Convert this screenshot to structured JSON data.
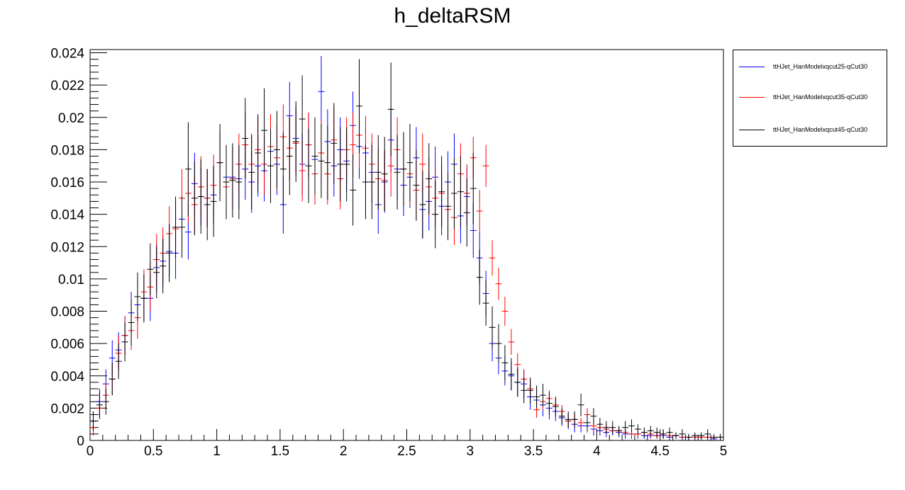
{
  "chart_data": {
    "type": "scatter",
    "title": "h_deltaRSM",
    "xlabel": "",
    "ylabel": "",
    "xlim": [
      0,
      5
    ],
    "ylim": [
      0,
      0.0242
    ],
    "x_ticks": [
      "0",
      "0.5",
      "1",
      "1.5",
      "2",
      "2.5",
      "3",
      "3.5",
      "4",
      "4.5",
      "5"
    ],
    "y_ticks": [
      "0",
      "0.002",
      "0.004",
      "0.006",
      "0.008",
      "0.01",
      "0.012",
      "0.014",
      "0.016",
      "0.018",
      "0.02",
      "0.022",
      "0.024"
    ],
    "bin_width": 0.05,
    "legend_position": "top-right-outside",
    "grid": false,
    "series": [
      {
        "name": "ttHJet_HanModelxqcut25-qCut30",
        "color": "#0000ff",
        "values": [
          0.0012,
          0.0024,
          0.0035,
          0.0051,
          0.0056,
          0.0065,
          0.0079,
          0.0084,
          0.0088,
          0.0088,
          0.0107,
          0.0111,
          0.0117,
          0.0116,
          0.0137,
          0.0129,
          0.0159,
          0.0151,
          0.015,
          0.0152,
          0.0172,
          0.0163,
          0.0163,
          0.0162,
          0.0168,
          0.016,
          0.017,
          0.0167,
          0.0179,
          0.0171,
          0.0146,
          0.0201,
          0.0187,
          0.0171,
          0.0183,
          0.0174,
          0.0216,
          0.0185,
          0.017,
          0.018,
          0.0173,
          0.0195,
          0.0182,
          0.0178,
          0.0166,
          0.0146,
          0.016,
          0.0186,
          0.0168,
          0.0158,
          0.0163,
          0.0175,
          0.0143,
          0.0148,
          0.0163,
          0.0145,
          0.016,
          0.0171,
          0.0139,
          0.0151,
          0.013,
          0.0113,
          0.0091,
          0.006,
          0.0051,
          0.0043,
          0.004,
          0.0036,
          0.0035,
          0.0027,
          0.0025,
          0.0022,
          0.002,
          0.0018,
          0.0014,
          0.0012,
          0.001,
          0.0009,
          0.0009,
          0.0007,
          0.0006,
          0.0005,
          0.0006,
          0.0005,
          0.0004,
          0.0004,
          0.0004,
          0.0003,
          0.0003,
          0.0003,
          0.0003,
          0.0002,
          0.0003,
          0.0002,
          0.0002,
          0.0002,
          0.0002,
          0.0002,
          0.0001,
          0.0002
        ],
        "errors": [
          0.0006,
          0.0008,
          0.0009,
          0.0011,
          0.0011,
          0.0012,
          0.0013,
          0.0014,
          0.0014,
          0.0014,
          0.0015,
          0.0016,
          0.0016,
          0.0016,
          0.0017,
          0.0017,
          0.0019,
          0.0018,
          0.0018,
          0.0018,
          0.0019,
          0.0019,
          0.0019,
          0.0019,
          0.0019,
          0.0019,
          0.0019,
          0.0019,
          0.002,
          0.0019,
          0.0018,
          0.0021,
          0.002,
          0.0019,
          0.002,
          0.0019,
          0.0022,
          0.002,
          0.0019,
          0.002,
          0.0019,
          0.0021,
          0.002,
          0.002,
          0.0019,
          0.0018,
          0.0019,
          0.002,
          0.0019,
          0.0019,
          0.0019,
          0.0019,
          0.0018,
          0.0018,
          0.0019,
          0.0018,
          0.0019,
          0.0019,
          0.0017,
          0.0018,
          0.0017,
          0.0016,
          0.0014,
          0.0011,
          0.001,
          0.0009,
          0.0009,
          0.0009,
          0.0009,
          0.0008,
          0.0007,
          0.0007,
          0.0007,
          0.0006,
          0.0005,
          0.0005,
          0.0005,
          0.0004,
          0.0004,
          0.0004,
          0.0003,
          0.0003,
          0.0003,
          0.0003,
          0.0003,
          0.0003,
          0.0003,
          0.0002,
          0.0002,
          0.0002,
          0.0002,
          0.0002,
          0.0002,
          0.0002,
          0.0002,
          0.0002,
          0.0002,
          0.0002,
          0.0001,
          0.0002
        ]
      },
      {
        "name": "ttHJet_HanModelxqcut35-qCut30",
        "color": "#ff0000",
        "values": [
          0.0008,
          0.002,
          0.0028,
          0.0038,
          0.0054,
          0.0065,
          0.0068,
          0.0076,
          0.0092,
          0.0095,
          0.0112,
          0.0116,
          0.0128,
          0.0131,
          0.015,
          0.0153,
          0.0146,
          0.0157,
          0.015,
          0.0158,
          0.0172,
          0.0157,
          0.0162,
          0.0171,
          0.0183,
          0.0171,
          0.018,
          0.0171,
          0.0182,
          0.0175,
          0.0188,
          0.0181,
          0.0184,
          0.0167,
          0.0183,
          0.0165,
          0.0178,
          0.0165,
          0.0186,
          0.0162,
          0.018,
          0.0183,
          0.0189,
          0.0181,
          0.0171,
          0.0162,
          0.0161,
          0.017,
          0.018,
          0.0168,
          0.0165,
          0.0155,
          0.0171,
          0.0157,
          0.015,
          0.0153,
          0.0143,
          0.0138,
          0.0165,
          0.0153,
          0.0175,
          0.0142,
          0.017,
          0.0113,
          0.0097,
          0.008,
          0.0061,
          0.0047,
          0.0038,
          0.0032,
          0.0019,
          0.0024,
          0.0026,
          0.0022,
          0.0018,
          0.0012,
          0.0013,
          0.0011,
          0.0016,
          0.0009,
          0.0008,
          0.0007,
          0.0006,
          0.0006,
          0.0005,
          0.0004,
          0.0004,
          0.0005,
          0.0004,
          0.0003,
          0.0004,
          0.0003,
          0.0003,
          0.0002,
          0.0002,
          0.0002,
          0.0002,
          0.0002,
          0.0002,
          0.0002
        ],
        "errors": [
          0.0005,
          0.0007,
          0.0008,
          0.001,
          0.0011,
          0.0012,
          0.0012,
          0.0013,
          0.0014,
          0.0015,
          0.0016,
          0.0016,
          0.0017,
          0.0017,
          0.0018,
          0.0018,
          0.0018,
          0.0019,
          0.0018,
          0.0019,
          0.0019,
          0.0019,
          0.0019,
          0.0019,
          0.002,
          0.0019,
          0.002,
          0.0019,
          0.002,
          0.002,
          0.002,
          0.002,
          0.002,
          0.0019,
          0.002,
          0.0019,
          0.002,
          0.0019,
          0.002,
          0.0019,
          0.002,
          0.002,
          0.002,
          0.002,
          0.0019,
          0.0019,
          0.0019,
          0.0019,
          0.002,
          0.0019,
          0.0019,
          0.0018,
          0.0019,
          0.0018,
          0.0018,
          0.0018,
          0.0018,
          0.0017,
          0.0019,
          0.0018,
          0.0013,
          0.0013,
          0.0013,
          0.0011,
          0.001,
          0.0009,
          0.0008,
          0.0007,
          0.0006,
          0.0006,
          0.0005,
          0.0005,
          0.0005,
          0.0005,
          0.0004,
          0.0004,
          0.0004,
          0.0003,
          0.0004,
          0.0003,
          0.0003,
          0.0003,
          0.0002,
          0.0002,
          0.0002,
          0.0002,
          0.0002,
          0.0002,
          0.0002,
          0.0002,
          0.0002,
          0.0002,
          0.0002,
          0.0001,
          0.0001,
          0.0001,
          0.0001,
          0.0001,
          0.0001,
          0.0001
        ]
      },
      {
        "name": "ttHJet_HanModelxqcut45-qCut30",
        "color": "#000000",
        "values": [
          0.0012,
          0.0022,
          0.0024,
          0.0038,
          0.0049,
          0.0061,
          0.0073,
          0.0089,
          0.0088,
          0.0106,
          0.0104,
          0.0108,
          0.0116,
          0.0132,
          0.0132,
          0.0168,
          0.015,
          0.0151,
          0.0146,
          0.0148,
          0.0172,
          0.016,
          0.0161,
          0.016,
          0.0187,
          0.0166,
          0.0178,
          0.0192,
          0.017,
          0.018,
          0.0168,
          0.0176,
          0.0185,
          0.0199,
          0.017,
          0.0176,
          0.0173,
          0.0172,
          0.0184,
          0.0171,
          0.0171,
          0.0155,
          0.0207,
          0.016,
          0.016,
          0.0166,
          0.0165,
          0.0205,
          0.0166,
          0.0168,
          0.0172,
          0.0158,
          0.0146,
          0.0162,
          0.014,
          0.0154,
          0.0145,
          0.0153,
          0.0154,
          0.0141,
          0.0156,
          0.0101,
          0.0085,
          0.007,
          0.006,
          0.0048,
          0.0041,
          0.0036,
          0.0031,
          0.0031,
          0.0027,
          0.0028,
          0.0023,
          0.0021,
          0.0015,
          0.0013,
          0.0013,
          0.0022,
          0.0011,
          0.0015,
          0.001,
          0.0008,
          0.0008,
          0.0006,
          0.0008,
          0.0009,
          0.0007,
          0.0005,
          0.0006,
          0.0005,
          0.0004,
          0.0005,
          0.0003,
          0.0004,
          0.0002,
          0.0003,
          0.0003,
          0.0004,
          0.0002,
          0.0002
        ],
        "errors": [
          0.0006,
          0.0008,
          0.0008,
          0.001,
          0.0011,
          0.0012,
          0.0014,
          0.0015,
          0.0015,
          0.0016,
          0.0016,
          0.0017,
          0.0018,
          0.0019,
          0.0019,
          0.0029,
          0.0023,
          0.0023,
          0.0022,
          0.0022,
          0.0024,
          0.0023,
          0.0023,
          0.0023,
          0.0025,
          0.0023,
          0.0024,
          0.0026,
          0.0023,
          0.0024,
          0.0023,
          0.0024,
          0.0025,
          0.0027,
          0.0023,
          0.0024,
          0.0023,
          0.0023,
          0.0025,
          0.0023,
          0.0023,
          0.0022,
          0.0029,
          0.0023,
          0.0023,
          0.0023,
          0.0023,
          0.0029,
          0.0023,
          0.0023,
          0.0024,
          0.0022,
          0.0021,
          0.0022,
          0.0021,
          0.0022,
          0.0021,
          0.0022,
          0.0022,
          0.0021,
          0.0022,
          0.0017,
          0.0014,
          0.0013,
          0.0012,
          0.0011,
          0.001,
          0.0009,
          0.0008,
          0.0008,
          0.0007,
          0.0007,
          0.0007,
          0.0006,
          0.0005,
          0.0005,
          0.0005,
          0.0007,
          0.0005,
          0.0005,
          0.0004,
          0.0004,
          0.0004,
          0.0003,
          0.0004,
          0.0004,
          0.0003,
          0.0003,
          0.0003,
          0.0003,
          0.0003,
          0.0003,
          0.0002,
          0.0003,
          0.0002,
          0.0002,
          0.0002,
          0.0003,
          0.0002,
          0.0002
        ]
      }
    ]
  }
}
